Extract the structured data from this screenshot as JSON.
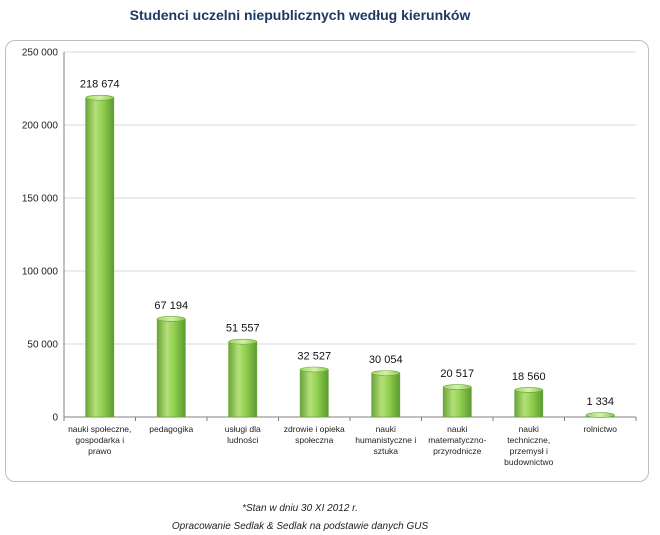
{
  "title": "Studenci uczelni niepublicznych według kierunków",
  "footnote": "*Stan w dniu 30 XI 2012 r.",
  "source": "Opracowanie Sedlak & Sedlak na podstawie danych GUS",
  "colors": {
    "bar": "#92d050",
    "bar_dark": "#6aa43a",
    "grid": "#d9d9d9"
  },
  "chart_data": {
    "type": "bar",
    "title": "Studenci uczelni niepublicznych według kierunków",
    "categories": [
      "nauki społeczne, gospodarka i prawo",
      "pedagogika",
      "usługi dla ludności",
      "zdrowie i opieka społeczna",
      "nauki humanistyczne i sztuka",
      "nauki matematyczno-przyrodnicze",
      "nauki techniczne, przemysł i budownictwo",
      "rolnictwo"
    ],
    "category_lines": [
      [
        "nauki społeczne,",
        "gospodarka i",
        "prawo"
      ],
      [
        "pedagogika"
      ],
      [
        "usługi dla",
        "ludności"
      ],
      [
        "zdrowie i opieka",
        "społeczna"
      ],
      [
        "nauki",
        "humanistyczne i",
        "sztuka"
      ],
      [
        "nauki",
        "matematyczno-",
        "przyrodnicze"
      ],
      [
        "nauki",
        "techniczne,",
        "przemysł i",
        "budownictwo"
      ],
      [
        "rolnictwo"
      ]
    ],
    "values": [
      218674,
      67194,
      51557,
      32527,
      30054,
      20517,
      18560,
      1334
    ],
    "value_labels": [
      "218 674",
      "67 194",
      "51 557",
      "32 527",
      "30 054",
      "20 517",
      "18 560",
      "1 334"
    ],
    "ylim": [
      0,
      250000
    ],
    "yticks": [
      0,
      50000,
      100000,
      150000,
      200000,
      250000
    ],
    "ytick_labels": [
      "0",
      "50 000",
      "100 000",
      "150 000",
      "200 000",
      "250 000"
    ],
    "grid": true,
    "xlabel": "",
    "ylabel": ""
  }
}
